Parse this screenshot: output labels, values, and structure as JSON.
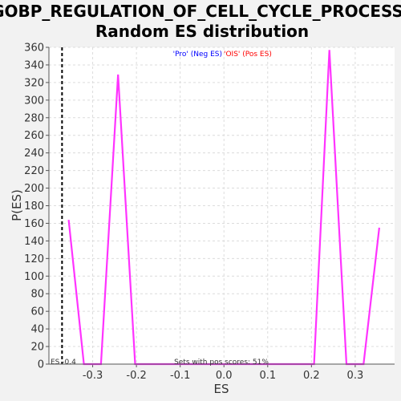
{
  "chart_data": {
    "type": "line",
    "title_line1": "GOBP_REGULATION_OF_CELL_CYCLE_PROCESS:",
    "title_line2": "Random ES distribution",
    "xlabel": "ES",
    "ylabel": "P(ES)",
    "xlim": [
      -0.4,
      0.39
    ],
    "ylim": [
      0,
      360
    ],
    "x_ticks": [
      -0.3,
      -0.2,
      -0.1,
      0.0,
      0.1,
      0.2,
      0.3
    ],
    "x_tick_labels": [
      "-0.3",
      "-0.2",
      "-0.1",
      "0.0",
      "0.1",
      "0.2",
      "0.3"
    ],
    "y_ticks": [
      0,
      20,
      40,
      60,
      80,
      100,
      120,
      140,
      160,
      180,
      200,
      220,
      240,
      260,
      280,
      300,
      320,
      340,
      360
    ],
    "grid": true,
    "series": [
      {
        "color": "#ff33ff",
        "x": [
          -0.355,
          -0.32,
          -0.281,
          -0.242,
          -0.203,
          -0.164,
          -0.125,
          -0.086,
          -0.047,
          -0.008,
          0.031,
          0.07,
          0.109,
          0.148,
          0.187,
          0.206,
          0.241,
          0.28,
          0.319,
          0.355
        ],
        "y": [
          164,
          0,
          0,
          329,
          0,
          0,
          0,
          0,
          0,
          0,
          0,
          0,
          0,
          0,
          0,
          0,
          357,
          0,
          0,
          155
        ]
      }
    ],
    "actual_es": -0.37,
    "actual_es_label": "ES -0.4",
    "legend_neg": "'Pro' (Neg ES)",
    "legend_pos": "'OIS' (Pos ES)",
    "legend_neg_color": "#0000ff",
    "legend_pos_color": "#ff0000",
    "footer_note": "Sets with pos scores: 51%"
  }
}
